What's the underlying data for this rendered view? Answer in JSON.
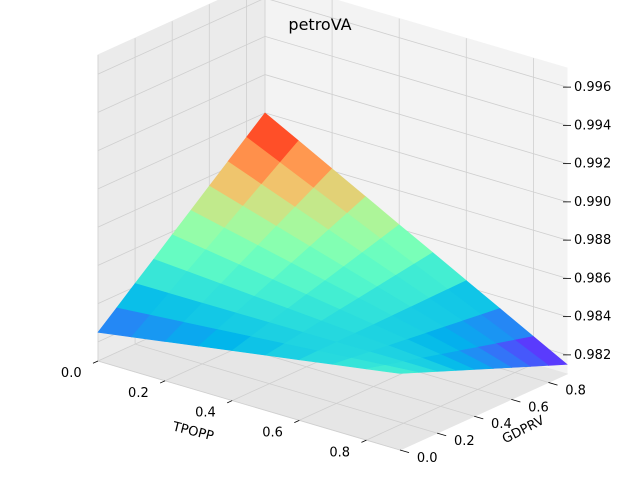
{
  "chart_data": {
    "type": "surface3d",
    "title": "petroVA",
    "xlabel": "TPOPP",
    "ylabel": "GDPRV",
    "zlabel": "",
    "xlim": [
      0.0,
      0.9
    ],
    "ylim": [
      0.0,
      0.9
    ],
    "zlim": [
      0.981,
      0.997
    ],
    "x_ticks": [
      "0.0",
      "0.2",
      "0.4",
      "0.6",
      "0.8"
    ],
    "y_ticks": [
      "0.0",
      "0.2",
      "0.4",
      "0.6",
      "0.8"
    ],
    "z_ticks": [
      "0.982",
      "0.984",
      "0.986",
      "0.988",
      "0.990",
      "0.992",
      "0.994",
      "0.996"
    ],
    "colormap": "rainbow",
    "grid": true,
    "x": [
      0.0,
      0.1,
      0.2,
      0.3,
      0.4,
      0.5,
      0.6,
      0.7,
      0.8,
      0.9
    ],
    "y": [
      0.0,
      0.1,
      0.2,
      0.3,
      0.4,
      0.5,
      0.6,
      0.7,
      0.8,
      0.9
    ],
    "corner_values": {
      "x0_y0": 0.9825,
      "x0.9_y0": 0.985,
      "x0_y0.9": 0.99,
      "x0.9_y0.9": 0.9815
    }
  }
}
